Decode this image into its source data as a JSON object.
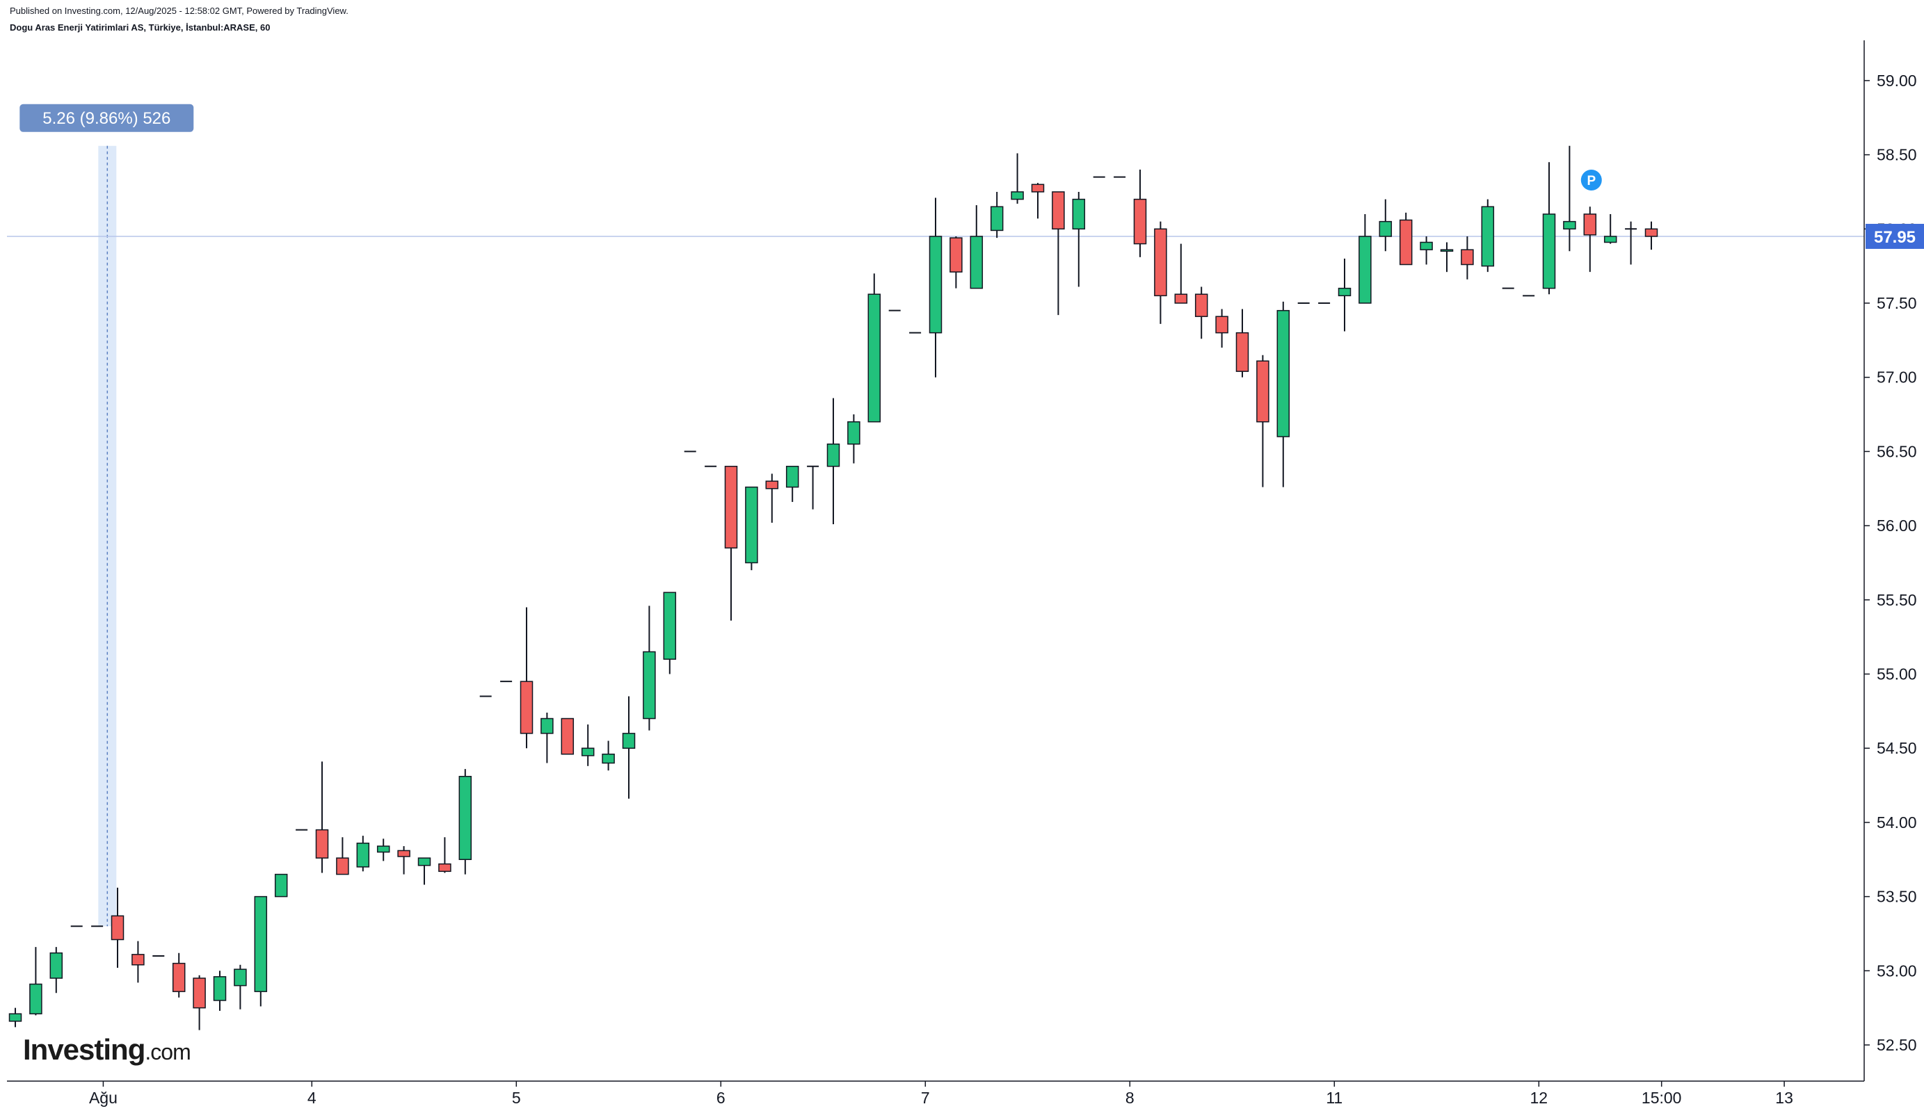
{
  "header": {
    "published": "Published on Investing.com, 12/Aug/2025 - 12:58:02 GMT, Powered by TradingView.",
    "symbol": "Dogu Aras Enerji Yatirimlari AS, Türkiye, İstanbul:ARASE, 60"
  },
  "logo": {
    "brand": "Investing",
    "suffix": ".com"
  },
  "measure_label": "5.26 (9.86%) 526",
  "price_label": "57.95",
  "pivot_marker": "P",
  "colors": {
    "up": "#22c17c",
    "down": "#f1605d",
    "wick": "#131722",
    "price_line": "#b7c6ea",
    "price_tag": "#3d6bd8",
    "measure_bg": "#6d8fc7",
    "measure_band": "#dde9f9",
    "pivot": "#2196f3"
  },
  "chart_data": {
    "type": "candlestick",
    "interval": "60",
    "ylim": [
      52.25,
      59.25
    ],
    "y_ticks": [
      "52.50",
      "53.00",
      "53.50",
      "54.00",
      "54.50",
      "55.00",
      "55.50",
      "56.00",
      "56.50",
      "57.00",
      "57.50",
      "58.00",
      "58.50",
      "59.00"
    ],
    "x_ticks": [
      {
        "label": "Ağu",
        "i": 4.3
      },
      {
        "label": "4",
        "i": 14.5
      },
      {
        "label": "5",
        "i": 24.5
      },
      {
        "label": "6",
        "i": 34.5
      },
      {
        "label": "7",
        "i": 44.5
      },
      {
        "label": "8",
        "i": 54.5
      },
      {
        "label": "11",
        "i": 64.5
      },
      {
        "label": "12",
        "i": 74.5
      },
      {
        "label": "15:00",
        "i": 80.5
      },
      {
        "label": "13",
        "i": 86.5
      }
    ],
    "last_price": 57.95,
    "measure": {
      "from": 53.3,
      "to": 58.56,
      "change": 5.26,
      "percent": 9.86,
      "bars": 526,
      "i": 4.5
    },
    "pivot_i": 77,
    "candles": [
      [
        52.66,
        52.71,
        52.62,
        52.75
      ],
      [
        52.71,
        52.91,
        52.7,
        53.16
      ],
      [
        52.95,
        53.12,
        52.85,
        53.16
      ],
      [
        53.3,
        53.3,
        53.3,
        53.3
      ],
      [
        53.3,
        53.3,
        53.3,
        53.3
      ],
      [
        53.37,
        53.21,
        53.02,
        53.56
      ],
      [
        53.11,
        53.04,
        52.92,
        53.2
      ],
      [
        53.1,
        53.1,
        53.1,
        53.1
      ],
      [
        53.05,
        52.86,
        52.82,
        53.12
      ],
      [
        52.95,
        52.75,
        52.6,
        52.97
      ],
      [
        52.8,
        52.96,
        52.73,
        53.0
      ],
      [
        52.9,
        53.01,
        52.74,
        53.04
      ],
      [
        52.86,
        53.5,
        52.76,
        53.5
      ],
      [
        53.5,
        53.65,
        53.5,
        53.65
      ],
      [
        53.95,
        53.95,
        53.95,
        53.95
      ],
      [
        53.95,
        53.76,
        53.66,
        54.41
      ],
      [
        53.76,
        53.65,
        53.65,
        53.9
      ],
      [
        53.7,
        53.86,
        53.67,
        53.91
      ],
      [
        53.8,
        53.84,
        53.74,
        53.89
      ],
      [
        53.81,
        53.77,
        53.65,
        53.84
      ],
      [
        53.71,
        53.76,
        53.58,
        53.76
      ],
      [
        53.72,
        53.67,
        53.66,
        53.9
      ],
      [
        53.75,
        54.31,
        53.65,
        54.36
      ],
      [
        54.85,
        54.85,
        54.85,
        54.85
      ],
      [
        54.95,
        54.95,
        54.95,
        54.95
      ],
      [
        54.95,
        54.6,
        54.5,
        55.45
      ],
      [
        54.6,
        54.7,
        54.4,
        54.74
      ],
      [
        54.7,
        54.46,
        54.46,
        54.7
      ],
      [
        54.45,
        54.5,
        54.38,
        54.66
      ],
      [
        54.4,
        54.46,
        54.35,
        54.55
      ],
      [
        54.5,
        54.6,
        54.16,
        54.85
      ],
      [
        54.7,
        55.15,
        54.62,
        55.46
      ],
      [
        55.1,
        55.55,
        55.0,
        55.55
      ],
      [
        56.5,
        56.5,
        56.5,
        56.5
      ],
      [
        56.4,
        56.4,
        56.4,
        56.4
      ],
      [
        56.4,
        55.85,
        55.36,
        56.4
      ],
      [
        55.75,
        56.26,
        55.7,
        56.26
      ],
      [
        56.3,
        56.25,
        56.02,
        56.35
      ],
      [
        56.26,
        56.4,
        56.16,
        56.4
      ],
      [
        56.4,
        56.4,
        56.11,
        56.4
      ],
      [
        56.4,
        56.55,
        56.01,
        56.86
      ],
      [
        56.55,
        56.7,
        56.42,
        56.75
      ],
      [
        56.7,
        57.56,
        56.7,
        57.7
      ],
      [
        57.45,
        57.45,
        57.45,
        57.45
      ],
      [
        57.3,
        57.3,
        57.3,
        57.3
      ],
      [
        57.3,
        57.95,
        57.0,
        58.21
      ],
      [
        57.94,
        57.71,
        57.6,
        57.95
      ],
      [
        57.6,
        57.95,
        57.6,
        58.16
      ],
      [
        57.99,
        58.15,
        57.94,
        58.25
      ],
      [
        58.2,
        58.25,
        58.17,
        58.51
      ],
      [
        58.3,
        58.25,
        58.07,
        58.31
      ],
      [
        58.25,
        58.0,
        57.42,
        58.25
      ],
      [
        58.0,
        58.2,
        57.61,
        58.25
      ],
      [
        58.35,
        58.35,
        58.35,
        58.35
      ],
      [
        58.35,
        58.35,
        58.35,
        58.35
      ],
      [
        58.2,
        57.9,
        57.81,
        58.4
      ],
      [
        58.0,
        57.55,
        57.36,
        58.05
      ],
      [
        57.56,
        57.5,
        57.5,
        57.9
      ],
      [
        57.56,
        57.41,
        57.26,
        57.61
      ],
      [
        57.41,
        57.3,
        57.2,
        57.46
      ],
      [
        57.3,
        57.04,
        57.0,
        57.46
      ],
      [
        57.11,
        56.7,
        56.26,
        57.15
      ],
      [
        56.6,
        57.45,
        56.26,
        57.51
      ],
      [
        57.5,
        57.5,
        57.5,
        57.5
      ],
      [
        57.5,
        57.5,
        57.5,
        57.5
      ],
      [
        57.55,
        57.6,
        57.31,
        57.8
      ],
      [
        57.5,
        57.95,
        57.5,
        58.1
      ],
      [
        57.95,
        58.05,
        57.85,
        58.2
      ],
      [
        58.06,
        57.76,
        57.76,
        58.11
      ],
      [
        57.86,
        57.91,
        57.76,
        57.95
      ],
      [
        57.85,
        57.86,
        57.71,
        57.91
      ],
      [
        57.86,
        57.76,
        57.66,
        57.95
      ],
      [
        57.75,
        58.15,
        57.71,
        58.2
      ],
      [
        57.6,
        57.6,
        57.6,
        57.6
      ],
      [
        57.55,
        57.55,
        57.55,
        57.55
      ],
      [
        57.6,
        58.1,
        57.56,
        58.45
      ],
      [
        58.0,
        58.05,
        57.85,
        58.56
      ],
      [
        58.1,
        57.96,
        57.71,
        58.15
      ],
      [
        57.91,
        57.95,
        57.9,
        58.1
      ],
      [
        58.0,
        58.0,
        57.76,
        58.05
      ],
      [
        58.0,
        57.95,
        57.86,
        58.05
      ]
    ]
  }
}
